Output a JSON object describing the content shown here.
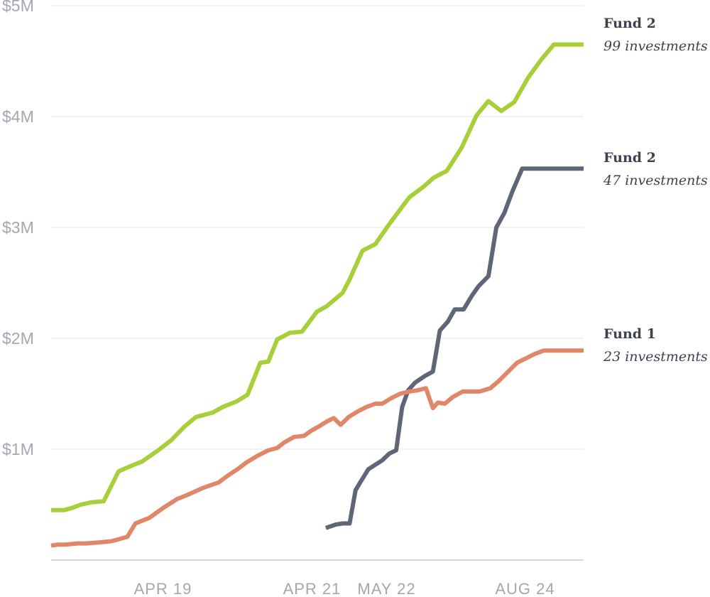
{
  "chart_data": {
    "type": "line",
    "title": "",
    "xlabel": "",
    "ylabel": "",
    "x_tick_labels": [
      "APR 19",
      "APR 21",
      "MAY 22",
      "AUG 24"
    ],
    "y_tick_labels": [
      "$1M",
      "$2M",
      "$3M",
      "$4M",
      "$5M"
    ],
    "y_ticks": [
      1,
      2,
      3,
      4,
      5
    ],
    "ylim": [
      0,
      5
    ],
    "y_unit": "$M",
    "x_unit": "years (decimal)",
    "xlim": [
      2019.25,
      2024.62
    ],
    "grid": true,
    "legend": "inline-end",
    "series": [
      {
        "name": "Fund 2",
        "subtitle": "99 investments",
        "color": "#a6cf3a",
        "x": [
          2019.25,
          2019.38,
          2019.46,
          2019.55,
          2019.65,
          2019.78,
          2019.93,
          2020.06,
          2020.17,
          2020.33,
          2020.46,
          2020.59,
          2020.71,
          2020.88,
          2020.98,
          2021.12,
          2021.23,
          2021.36,
          2021.44,
          2021.53,
          2021.66,
          2021.78,
          2021.93,
          2022.03,
          2022.19,
          2022.26,
          2022.39,
          2022.52,
          2022.66,
          2022.86,
          2023.01,
          2023.11,
          2023.24,
          2023.39,
          2023.54,
          2023.66,
          2023.79,
          2023.92,
          2024.06,
          2024.19,
          2024.32,
          2024.45,
          2024.62
        ],
        "values": [
          0.45,
          0.45,
          0.47,
          0.5,
          0.52,
          0.53,
          0.8,
          0.85,
          0.89,
          0.99,
          1.08,
          1.2,
          1.29,
          1.33,
          1.38,
          1.43,
          1.49,
          1.78,
          1.79,
          1.99,
          2.05,
          2.06,
          2.24,
          2.29,
          2.41,
          2.53,
          2.79,
          2.85,
          3.03,
          3.27,
          3.37,
          3.45,
          3.51,
          3.72,
          4.01,
          4.14,
          4.05,
          4.13,
          4.35,
          4.51,
          4.65,
          4.65,
          4.65
        ]
      },
      {
        "name": "Fund 2",
        "subtitle": "47 investments",
        "color": "#5f6677",
        "x": [
          2022.02,
          2022.12,
          2022.19,
          2022.26,
          2022.32,
          2022.38,
          2022.45,
          2022.52,
          2022.59,
          2022.66,
          2022.73,
          2022.79,
          2022.85,
          2022.92,
          2023.02,
          2023.1,
          2023.17,
          2023.25,
          2023.32,
          2023.41,
          2023.49,
          2023.56,
          2023.66,
          2023.74,
          2023.82,
          2023.9,
          2024.0,
          2024.09,
          2024.19,
          2024.29,
          2024.38,
          2024.48,
          2024.62
        ],
        "values": [
          0.29,
          0.32,
          0.33,
          0.33,
          0.63,
          0.72,
          0.82,
          0.86,
          0.9,
          0.96,
          0.99,
          1.38,
          1.53,
          1.6,
          1.66,
          1.7,
          2.07,
          2.15,
          2.26,
          2.26,
          2.38,
          2.47,
          2.56,
          3.0,
          3.13,
          3.32,
          3.53,
          3.53,
          3.53,
          3.53,
          3.53,
          3.53,
          3.53
        ]
      },
      {
        "name": "Fund 1",
        "subtitle": "23 investments",
        "color": "#e0876a",
        "x": [
          2019.25,
          2019.32,
          2019.4,
          2019.52,
          2019.6,
          2019.75,
          2019.86,
          2020.02,
          2020.1,
          2020.24,
          2020.38,
          2020.52,
          2020.63,
          2020.78,
          2020.94,
          2021.03,
          2021.13,
          2021.22,
          2021.33,
          2021.44,
          2021.53,
          2021.6,
          2021.7,
          2021.8,
          2021.88,
          2021.96,
          2022.03,
          2022.1,
          2022.17,
          2022.25,
          2022.34,
          2022.43,
          2022.52,
          2022.59,
          2022.68,
          2022.77,
          2022.86,
          2022.94,
          2023.03,
          2023.1,
          2023.15,
          2023.22,
          2023.3,
          2023.4,
          2023.48,
          2023.57,
          2023.68,
          2023.77,
          2023.86,
          2023.95,
          2024.04,
          2024.13,
          2024.22,
          2024.31,
          2024.4,
          2024.5,
          2024.62
        ],
        "values": [
          0.13,
          0.14,
          0.14,
          0.15,
          0.15,
          0.16,
          0.17,
          0.21,
          0.33,
          0.38,
          0.47,
          0.55,
          0.59,
          0.65,
          0.7,
          0.76,
          0.82,
          0.88,
          0.94,
          0.99,
          1.01,
          1.06,
          1.11,
          1.12,
          1.17,
          1.21,
          1.25,
          1.28,
          1.22,
          1.29,
          1.34,
          1.38,
          1.41,
          1.41,
          1.46,
          1.5,
          1.52,
          1.53,
          1.55,
          1.37,
          1.42,
          1.41,
          1.47,
          1.52,
          1.52,
          1.52,
          1.55,
          1.62,
          1.7,
          1.78,
          1.82,
          1.86,
          1.89,
          1.89,
          1.89,
          1.89,
          1.89
        ]
      }
    ]
  }
}
